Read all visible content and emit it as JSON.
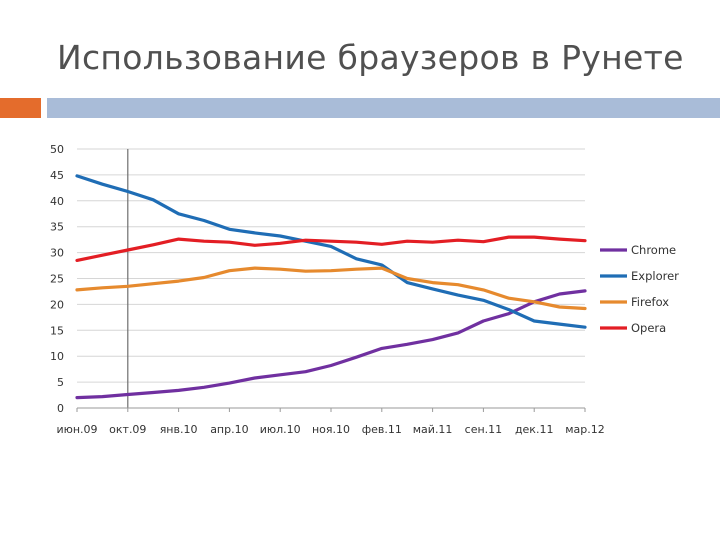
{
  "slide": {
    "title": "Использование браузеров в Рунете",
    "accent_color": "#E46C2C",
    "bar_color": "#A9BCD8"
  },
  "chart_data": {
    "type": "line",
    "title": "",
    "xlabel": "",
    "ylabel": "",
    "ylim": [
      0,
      50
    ],
    "yticks": [
      0,
      5,
      10,
      15,
      20,
      25,
      30,
      35,
      40,
      45,
      50
    ],
    "x_tick_labels": [
      "июн.09",
      "окт.09",
      "янв.10",
      "апр.10",
      "июл.10",
      "ноя.10",
      "фев.11",
      "май.11",
      "сен.11",
      "дек.11",
      "мар.12"
    ],
    "x_range": [
      0,
      10
    ],
    "grid": "horizontal",
    "vertical_marker_at": 1,
    "legend_position": "right",
    "series": [
      {
        "name": "Chrome",
        "color": "#7030A0",
        "x": [
          0,
          0.5,
          1,
          1.5,
          2,
          2.5,
          3,
          3.5,
          4,
          4.5,
          5,
          5.5,
          6,
          6.5,
          7,
          7.5,
          8,
          8.5,
          9,
          9.5,
          10
        ],
        "values": [
          2.0,
          2.2,
          2.6,
          3.0,
          3.4,
          4.0,
          4.8,
          5.8,
          6.4,
          7.0,
          8.2,
          9.8,
          11.5,
          12.3,
          13.2,
          14.5,
          16.8,
          18.2,
          20.5,
          22.0,
          22.6
        ]
      },
      {
        "name": "Explorer",
        "color": "#1F6DB5",
        "x": [
          0,
          0.5,
          1,
          1.5,
          2,
          2.5,
          3,
          3.5,
          4,
          4.5,
          5,
          5.5,
          6,
          6.5,
          7,
          7.5,
          8,
          8.5,
          9,
          9.5,
          10
        ],
        "values": [
          44.8,
          43.2,
          41.8,
          40.2,
          37.5,
          36.2,
          34.5,
          33.8,
          33.2,
          32.2,
          31.2,
          28.8,
          27.6,
          24.2,
          23.0,
          21.8,
          20.8,
          19.0,
          16.8,
          16.2,
          15.6
        ]
      },
      {
        "name": "Firefox",
        "color": "#E68A2E",
        "x": [
          0,
          0.5,
          1,
          1.5,
          2,
          2.5,
          3,
          3.5,
          4,
          4.5,
          5,
          5.5,
          6,
          6.5,
          7,
          7.5,
          8,
          8.5,
          9,
          9.5,
          10
        ],
        "values": [
          22.8,
          23.2,
          23.5,
          24.0,
          24.5,
          25.2,
          26.5,
          27.0,
          26.8,
          26.4,
          26.5,
          26.8,
          27.0,
          25.0,
          24.2,
          23.8,
          22.8,
          21.2,
          20.5,
          19.5,
          19.2
        ]
      },
      {
        "name": "Opera",
        "color": "#E31E24",
        "x": [
          0,
          0.5,
          1,
          1.5,
          2,
          2.5,
          3,
          3.5,
          4,
          4.5,
          5,
          5.5,
          6,
          6.5,
          7,
          7.5,
          8,
          8.5,
          9,
          9.5,
          10
        ],
        "values": [
          28.5,
          29.5,
          30.5,
          31.5,
          32.6,
          32.2,
          32.0,
          31.4,
          31.8,
          32.4,
          32.2,
          32.0,
          31.6,
          32.2,
          32.0,
          32.4,
          32.1,
          33.0,
          33.0,
          32.6,
          32.3
        ]
      }
    ]
  }
}
